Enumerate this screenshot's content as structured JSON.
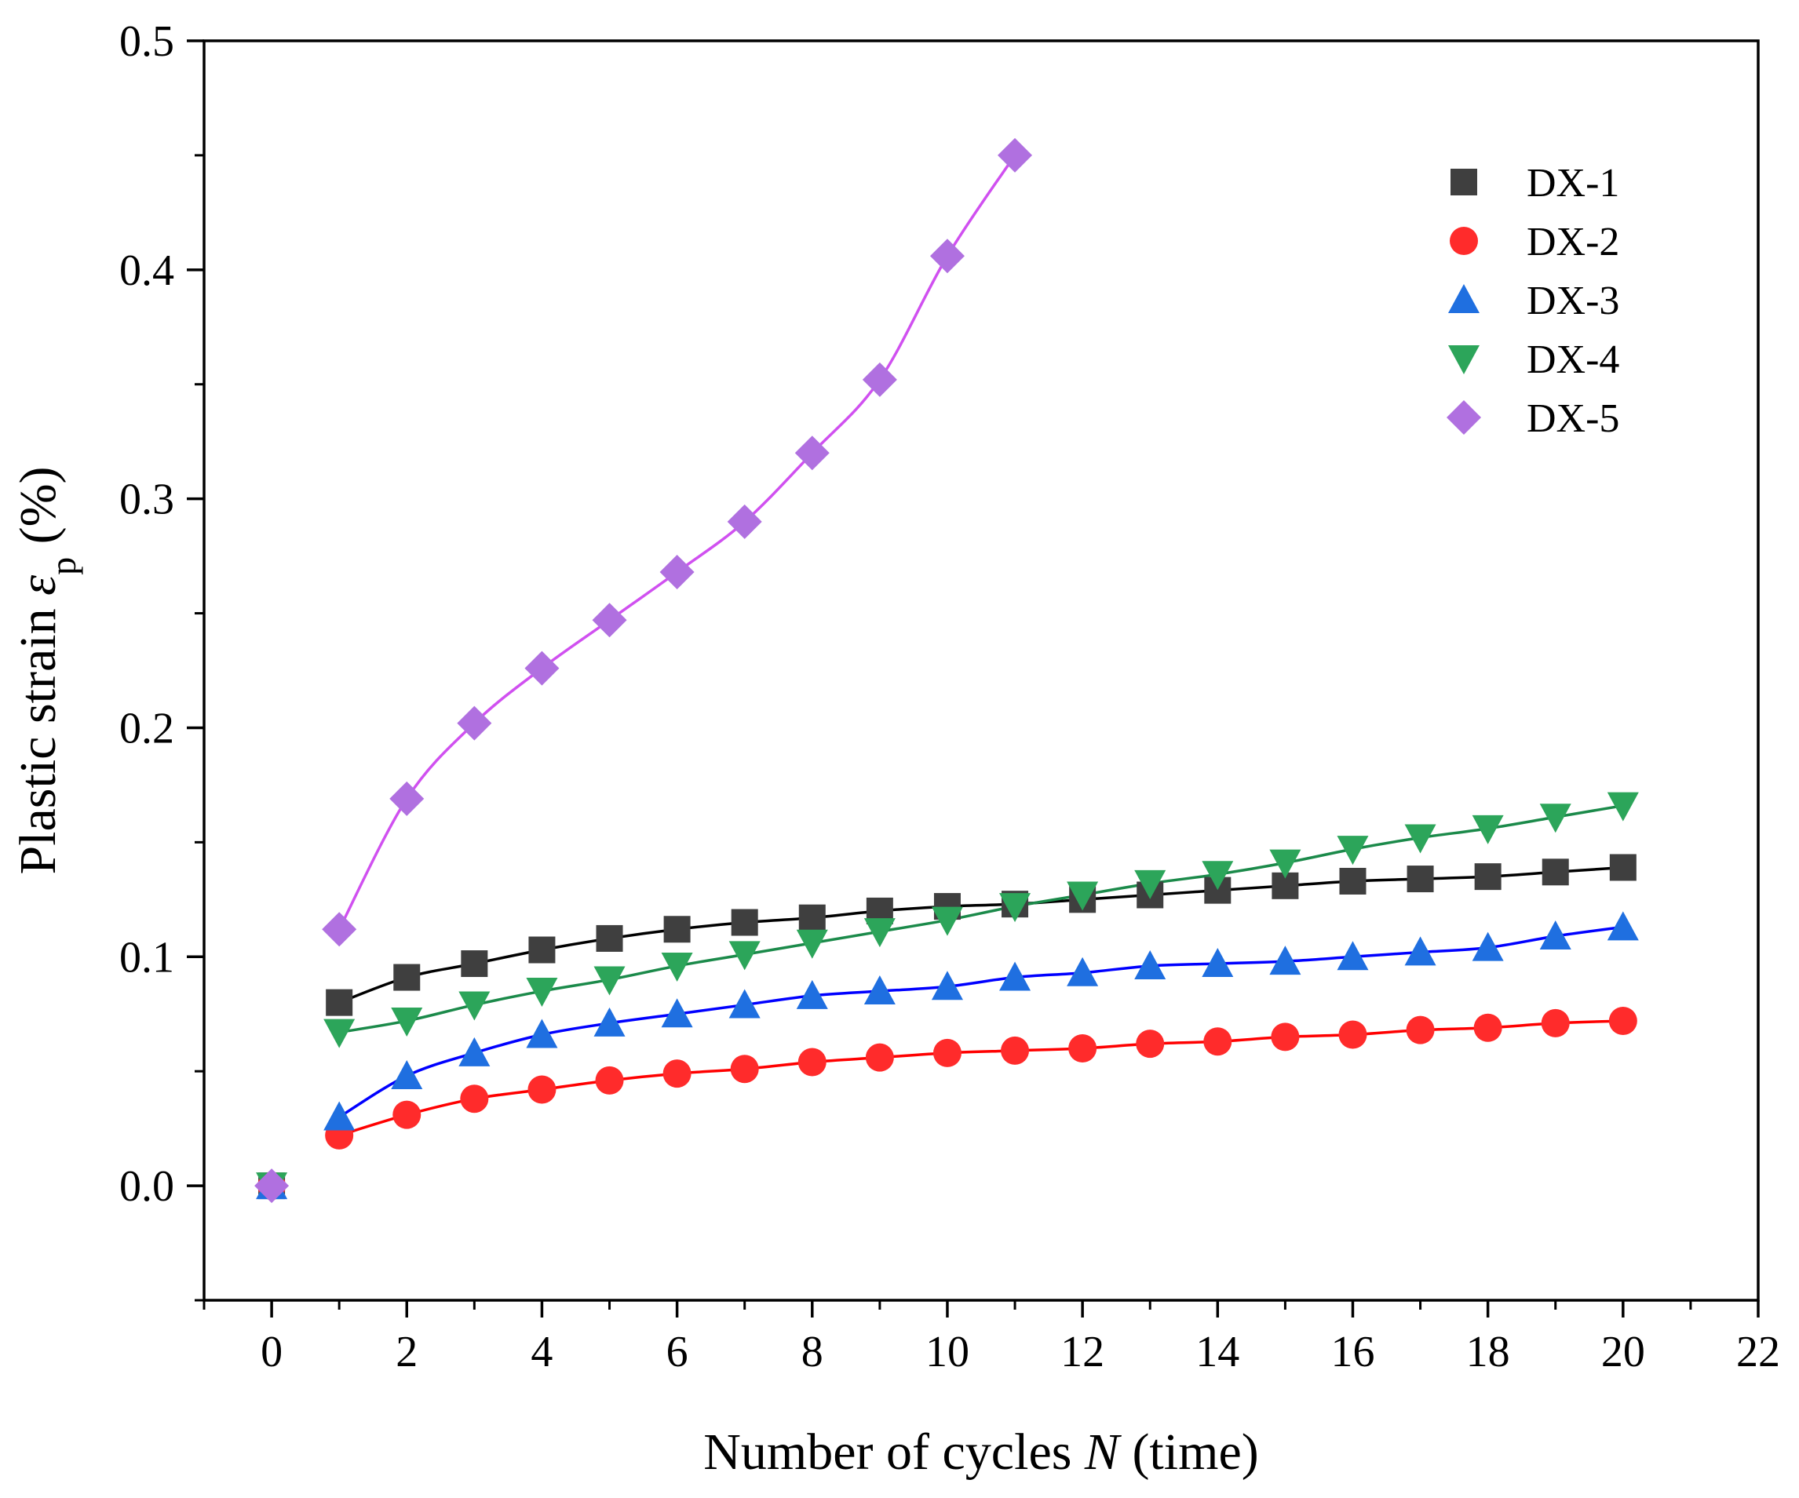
{
  "chart_data": {
    "type": "scatter",
    "title": "",
    "xlabel": {
      "prefix": "Number of cycles ",
      "symbol": "N",
      "suffix": " (time)"
    },
    "ylabel": {
      "prefix": "Plastic strain ",
      "symbol": "ε",
      "subscript": "p",
      "suffix": " (%)"
    },
    "xlim": [
      -1,
      22
    ],
    "ylim": [
      -0.05,
      0.5
    ],
    "x_ticks": [
      0,
      2,
      4,
      6,
      8,
      10,
      12,
      14,
      16,
      18,
      20,
      22
    ],
    "x_tick_labels": [
      "0",
      "2",
      "4",
      "6",
      "8",
      "10",
      "12",
      "14",
      "16",
      "18",
      "20",
      "22"
    ],
    "y_ticks": [
      0.0,
      0.1,
      0.2,
      0.3,
      0.4,
      0.5
    ],
    "y_tick_labels": [
      "0.0",
      "0.1",
      "0.2",
      "0.3",
      "0.4",
      "0.5"
    ],
    "grid": false,
    "legend_position": "top-right",
    "series": [
      {
        "name": "DX-1",
        "marker": "square",
        "marker_color": "#3f3f3f",
        "line_color": "#000000",
        "x": [
          0,
          1,
          2,
          3,
          4,
          5,
          6,
          7,
          8,
          9,
          10,
          11,
          12,
          13,
          14,
          15,
          16,
          17,
          18,
          19,
          20
        ],
        "y": [
          0,
          0.08,
          0.091,
          0.097,
          0.103,
          0.108,
          0.112,
          0.115,
          0.117,
          0.12,
          0.122,
          0.123,
          0.125,
          0.127,
          0.129,
          0.131,
          0.133,
          0.134,
          0.135,
          0.137,
          0.139
        ],
        "fit_from": 1
      },
      {
        "name": "DX-2",
        "marker": "circle",
        "marker_color": "#ff2b2b",
        "line_color": "#ff0000",
        "x": [
          0,
          1,
          2,
          3,
          4,
          5,
          6,
          7,
          8,
          9,
          10,
          11,
          12,
          13,
          14,
          15,
          16,
          17,
          18,
          19,
          20
        ],
        "y": [
          0,
          0.022,
          0.031,
          0.038,
          0.042,
          0.046,
          0.049,
          0.051,
          0.054,
          0.056,
          0.058,
          0.059,
          0.06,
          0.062,
          0.063,
          0.065,
          0.066,
          0.068,
          0.069,
          0.071,
          0.072
        ],
        "fit_from": 1
      },
      {
        "name": "DX-3",
        "marker": "triangle-up",
        "marker_color": "#1f6fe0",
        "line_color": "#0000ff",
        "x": [
          0,
          1,
          2,
          3,
          4,
          5,
          6,
          7,
          8,
          9,
          10,
          11,
          12,
          13,
          14,
          15,
          16,
          17,
          18,
          19,
          20
        ],
        "y": [
          0,
          0.03,
          0.048,
          0.058,
          0.066,
          0.071,
          0.075,
          0.079,
          0.083,
          0.085,
          0.087,
          0.091,
          0.093,
          0.096,
          0.097,
          0.098,
          0.1,
          0.102,
          0.104,
          0.109,
          0.113
        ],
        "fit_from": 1
      },
      {
        "name": "DX-4",
        "marker": "triangle-down",
        "marker_color": "#2ca55a",
        "line_color": "#1b8a4a",
        "x": [
          0,
          1,
          2,
          3,
          4,
          5,
          6,
          7,
          8,
          9,
          10,
          11,
          12,
          13,
          14,
          15,
          16,
          17,
          18,
          19,
          20
        ],
        "y": [
          0,
          0.067,
          0.072,
          0.079,
          0.085,
          0.09,
          0.096,
          0.101,
          0.106,
          0.111,
          0.116,
          0.122,
          0.127,
          0.132,
          0.136,
          0.141,
          0.147,
          0.152,
          0.156,
          0.161,
          0.166
        ],
        "fit_from": 1
      },
      {
        "name": "DX-5",
        "marker": "diamond",
        "marker_color": "#b070e0",
        "line_color": "#d050f0",
        "x": [
          0,
          1,
          2,
          3,
          4,
          5,
          6,
          7,
          8,
          9,
          10,
          11
        ],
        "y": [
          0,
          0.112,
          0.169,
          0.202,
          0.226,
          0.247,
          0.268,
          0.29,
          0.32,
          0.352,
          0.406,
          0.45
        ],
        "fit_from": 1
      }
    ]
  }
}
